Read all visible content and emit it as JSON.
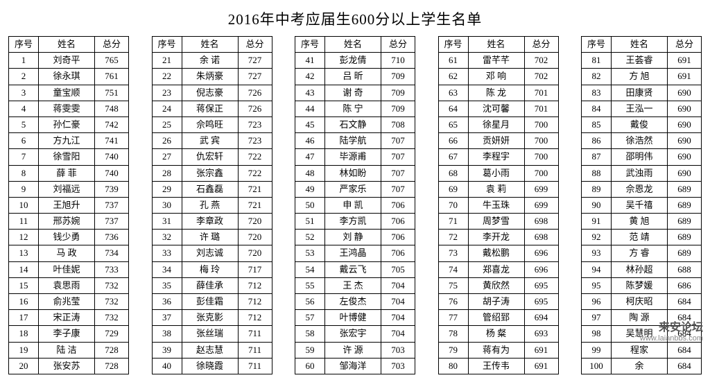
{
  "title": "2016年中考应届生600分以上学生名单",
  "headers": {
    "seq": "序号",
    "name": "姓名",
    "score": "总分"
  },
  "watermark": {
    "big": "来安论坛",
    "small": "www.laianbbs.com"
  },
  "groups": [
    [
      {
        "seq": "1",
        "name": "刘奇平",
        "score": "765"
      },
      {
        "seq": "2",
        "name": "徐永琪",
        "score": "761"
      },
      {
        "seq": "3",
        "name": "童宝顺",
        "score": "751"
      },
      {
        "seq": "4",
        "name": "蒋雯雯",
        "score": "748"
      },
      {
        "seq": "5",
        "name": "孙仁豪",
        "score": "742"
      },
      {
        "seq": "6",
        "name": "方九江",
        "score": "741"
      },
      {
        "seq": "7",
        "name": "徐雪阳",
        "score": "740"
      },
      {
        "seq": "8",
        "name": "薛 菲",
        "score": "740"
      },
      {
        "seq": "9",
        "name": "刘福远",
        "score": "739"
      },
      {
        "seq": "10",
        "name": "王旭升",
        "score": "737"
      },
      {
        "seq": "11",
        "name": "邢苏婉",
        "score": "737"
      },
      {
        "seq": "12",
        "name": "钱少勇",
        "score": "736"
      },
      {
        "seq": "13",
        "name": "马 政",
        "score": "734"
      },
      {
        "seq": "14",
        "name": "叶佳妮",
        "score": "733"
      },
      {
        "seq": "15",
        "name": "袁思雨",
        "score": "732"
      },
      {
        "seq": "16",
        "name": "俞兆莹",
        "score": "732"
      },
      {
        "seq": "17",
        "name": "宋正涛",
        "score": "732"
      },
      {
        "seq": "18",
        "name": "李子康",
        "score": "729"
      },
      {
        "seq": "19",
        "name": "陆 洁",
        "score": "728"
      },
      {
        "seq": "20",
        "name": "张安苏",
        "score": "728"
      }
    ],
    [
      {
        "seq": "21",
        "name": "余 诺",
        "score": "727"
      },
      {
        "seq": "22",
        "name": "朱炳豪",
        "score": "727"
      },
      {
        "seq": "23",
        "name": "倪志豪",
        "score": "726"
      },
      {
        "seq": "24",
        "name": "蒋保正",
        "score": "726"
      },
      {
        "seq": "25",
        "name": "佘鸣旺",
        "score": "723"
      },
      {
        "seq": "26",
        "name": "武 宾",
        "score": "723"
      },
      {
        "seq": "27",
        "name": "仇宏轩",
        "score": "722"
      },
      {
        "seq": "28",
        "name": "张宗鑫",
        "score": "722"
      },
      {
        "seq": "29",
        "name": "石鑫磊",
        "score": "721"
      },
      {
        "seq": "30",
        "name": "孔 燕",
        "score": "721"
      },
      {
        "seq": "31",
        "name": "李章政",
        "score": "720"
      },
      {
        "seq": "32",
        "name": "许 璐",
        "score": "720"
      },
      {
        "seq": "33",
        "name": "刘志诚",
        "score": "720"
      },
      {
        "seq": "34",
        "name": "梅 玲",
        "score": "717"
      },
      {
        "seq": "35",
        "name": "薛佳承",
        "score": "712"
      },
      {
        "seq": "36",
        "name": "彭佳霜",
        "score": "712"
      },
      {
        "seq": "37",
        "name": "张克影",
        "score": "712"
      },
      {
        "seq": "38",
        "name": "张丝瑞",
        "score": "711"
      },
      {
        "seq": "39",
        "name": "赵志慧",
        "score": "711"
      },
      {
        "seq": "40",
        "name": "徐晓霞",
        "score": "711"
      }
    ],
    [
      {
        "seq": "41",
        "name": "彭龙倩",
        "score": "710"
      },
      {
        "seq": "42",
        "name": "吕 昕",
        "score": "709"
      },
      {
        "seq": "43",
        "name": "谢 奇",
        "score": "709"
      },
      {
        "seq": "44",
        "name": "陈 宁",
        "score": "709"
      },
      {
        "seq": "45",
        "name": "石文静",
        "score": "708"
      },
      {
        "seq": "46",
        "name": "陆学航",
        "score": "707"
      },
      {
        "seq": "47",
        "name": "毕源甫",
        "score": "707"
      },
      {
        "seq": "48",
        "name": "林如盼",
        "score": "707"
      },
      {
        "seq": "49",
        "name": "严家乐",
        "score": "707"
      },
      {
        "seq": "50",
        "name": "申 凯",
        "score": "706"
      },
      {
        "seq": "51",
        "name": "李方凯",
        "score": "706"
      },
      {
        "seq": "52",
        "name": "刘 静",
        "score": "706"
      },
      {
        "seq": "53",
        "name": "王鸿晶",
        "score": "706"
      },
      {
        "seq": "54",
        "name": "戴云飞",
        "score": "705"
      },
      {
        "seq": "55",
        "name": "王 杰",
        "score": "704"
      },
      {
        "seq": "56",
        "name": "左俊杰",
        "score": "704"
      },
      {
        "seq": "57",
        "name": "叶博健",
        "score": "704"
      },
      {
        "seq": "58",
        "name": "张宏宇",
        "score": "704"
      },
      {
        "seq": "59",
        "name": "许 源",
        "score": "703"
      },
      {
        "seq": "60",
        "name": "邹海洋",
        "score": "703"
      }
    ],
    [
      {
        "seq": "61",
        "name": "雷芊芊",
        "score": "702"
      },
      {
        "seq": "62",
        "name": "邓 响",
        "score": "702"
      },
      {
        "seq": "63",
        "name": "陈 龙",
        "score": "701"
      },
      {
        "seq": "64",
        "name": "沈可馨",
        "score": "701"
      },
      {
        "seq": "65",
        "name": "徐星月",
        "score": "700"
      },
      {
        "seq": "66",
        "name": "贡妍妍",
        "score": "700"
      },
      {
        "seq": "67",
        "name": "李程宇",
        "score": "700"
      },
      {
        "seq": "68",
        "name": "葛小雨",
        "score": "700"
      },
      {
        "seq": "69",
        "name": "袁 莉",
        "score": "699"
      },
      {
        "seq": "70",
        "name": "牛玉珠",
        "score": "699"
      },
      {
        "seq": "71",
        "name": "周梦雪",
        "score": "698"
      },
      {
        "seq": "72",
        "name": "李开龙",
        "score": "698"
      },
      {
        "seq": "73",
        "name": "戴松鹏",
        "score": "696"
      },
      {
        "seq": "74",
        "name": "郑喜龙",
        "score": "696"
      },
      {
        "seq": "75",
        "name": "黄欣然",
        "score": "695"
      },
      {
        "seq": "76",
        "name": "胡子涛",
        "score": "695"
      },
      {
        "seq": "77",
        "name": "管绍郅",
        "score": "694"
      },
      {
        "seq": "78",
        "name": "杨 粲",
        "score": "693"
      },
      {
        "seq": "79",
        "name": "蒋有为",
        "score": "691"
      },
      {
        "seq": "80",
        "name": "王传韦",
        "score": "691"
      }
    ],
    [
      {
        "seq": "81",
        "name": "王荟睿",
        "score": "691"
      },
      {
        "seq": "82",
        "name": "方 旭",
        "score": "691"
      },
      {
        "seq": "83",
        "name": "田康贤",
        "score": "690"
      },
      {
        "seq": "84",
        "name": "王泓一",
        "score": "690"
      },
      {
        "seq": "85",
        "name": "戴俊",
        "score": "690"
      },
      {
        "seq": "86",
        "name": "徐浩然",
        "score": "690"
      },
      {
        "seq": "87",
        "name": "邵明伟",
        "score": "690"
      },
      {
        "seq": "88",
        "name": "武浊雨",
        "score": "690"
      },
      {
        "seq": "89",
        "name": "佘恩龙",
        "score": "689"
      },
      {
        "seq": "90",
        "name": "吴千禧",
        "score": "689"
      },
      {
        "seq": "91",
        "name": "黄 旭",
        "score": "689"
      },
      {
        "seq": "92",
        "name": "范 靖",
        "score": "689"
      },
      {
        "seq": "93",
        "name": "方 睿",
        "score": "689"
      },
      {
        "seq": "94",
        "name": "林孙超",
        "score": "688"
      },
      {
        "seq": "95",
        "name": "陈梦媛",
        "score": "686"
      },
      {
        "seq": "96",
        "name": "柯庆昭",
        "score": "684"
      },
      {
        "seq": "97",
        "name": "陶 源",
        "score": "684"
      },
      {
        "seq": "98",
        "name": "吴慧明",
        "score": "684"
      },
      {
        "seq": "99",
        "name": "程家",
        "score": "684"
      },
      {
        "seq": "100",
        "name": "余",
        "score": "684"
      }
    ]
  ]
}
